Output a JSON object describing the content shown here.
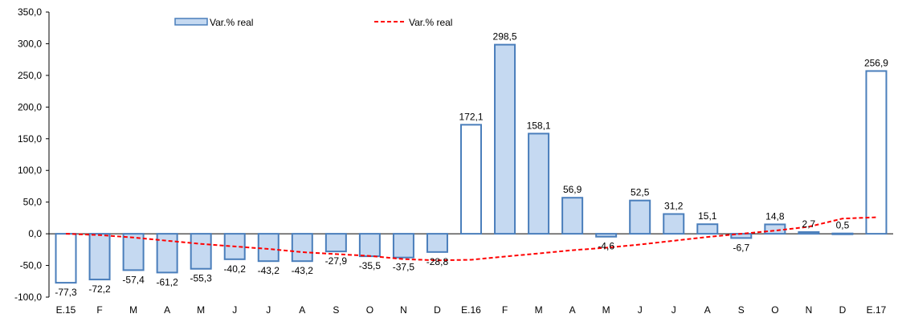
{
  "chart_data": {
    "type": "bar",
    "categories": [
      "E.15",
      "F",
      "M",
      "A",
      "M",
      "J",
      "J",
      "A",
      "S",
      "O",
      "N",
      "D",
      "E.16",
      "F",
      "M",
      "A",
      "M",
      "J",
      "J",
      "A",
      "S",
      "O",
      "N",
      "D",
      "E.17"
    ],
    "series": [
      {
        "name": "Var.% real",
        "kind": "bar",
        "values": [
          -77.3,
          -72.2,
          -57.4,
          -61.2,
          -55.3,
          -40.2,
          -43.2,
          -43.2,
          -27.9,
          -35.5,
          -37.5,
          -28.8,
          172.1,
          298.5,
          158.1,
          56.9,
          -4.6,
          52.5,
          31.2,
          15.1,
          -6.7,
          14.8,
          2.7,
          0.5,
          256.9
        ],
        "value_labels": [
          "-77,3",
          "-72,2",
          "-57,4",
          "-61,2",
          "-55,3",
          "-40,2",
          "-43,2",
          "-43,2",
          "-27,9",
          "-35,5",
          "-37,5",
          "-28,8",
          "172,1",
          "298,5",
          "158,1",
          "56,9",
          "-4,6",
          "52,5",
          "31,2",
          "15,1",
          "-6,7",
          "14,8",
          "2,7",
          "0,5",
          "256,9"
        ],
        "hollow_bars": [
          "E.15",
          "E.16",
          "E.17"
        ]
      },
      {
        "name": "Var.% real",
        "kind": "line",
        "style": "dashed",
        "values": [
          0,
          -2,
          -6,
          -11,
          -16,
          -20,
          -24,
          -29,
          -32,
          -35,
          -40,
          -42,
          -41,
          -36,
          -31,
          -26,
          -22,
          -17,
          -11,
          -5,
          0,
          5,
          11,
          24,
          26
        ]
      }
    ],
    "yticks": [
      "350,0",
      "300,0",
      "250,0",
      "200,0",
      "150,0",
      "100,0",
      "50,0",
      "0,0",
      "-50,0",
      "-100,0"
    ],
    "ylim": [
      -100,
      350
    ],
    "xlabel": "",
    "ylabel": "",
    "title": "",
    "legend_position": "top",
    "grid": false,
    "colors": {
      "bar_fill": "#c5d9f1",
      "bar_stroke": "#4a7ebb",
      "hollow_fill": "#ffffff",
      "line": "#ff0000",
      "axis": "#000000"
    }
  }
}
